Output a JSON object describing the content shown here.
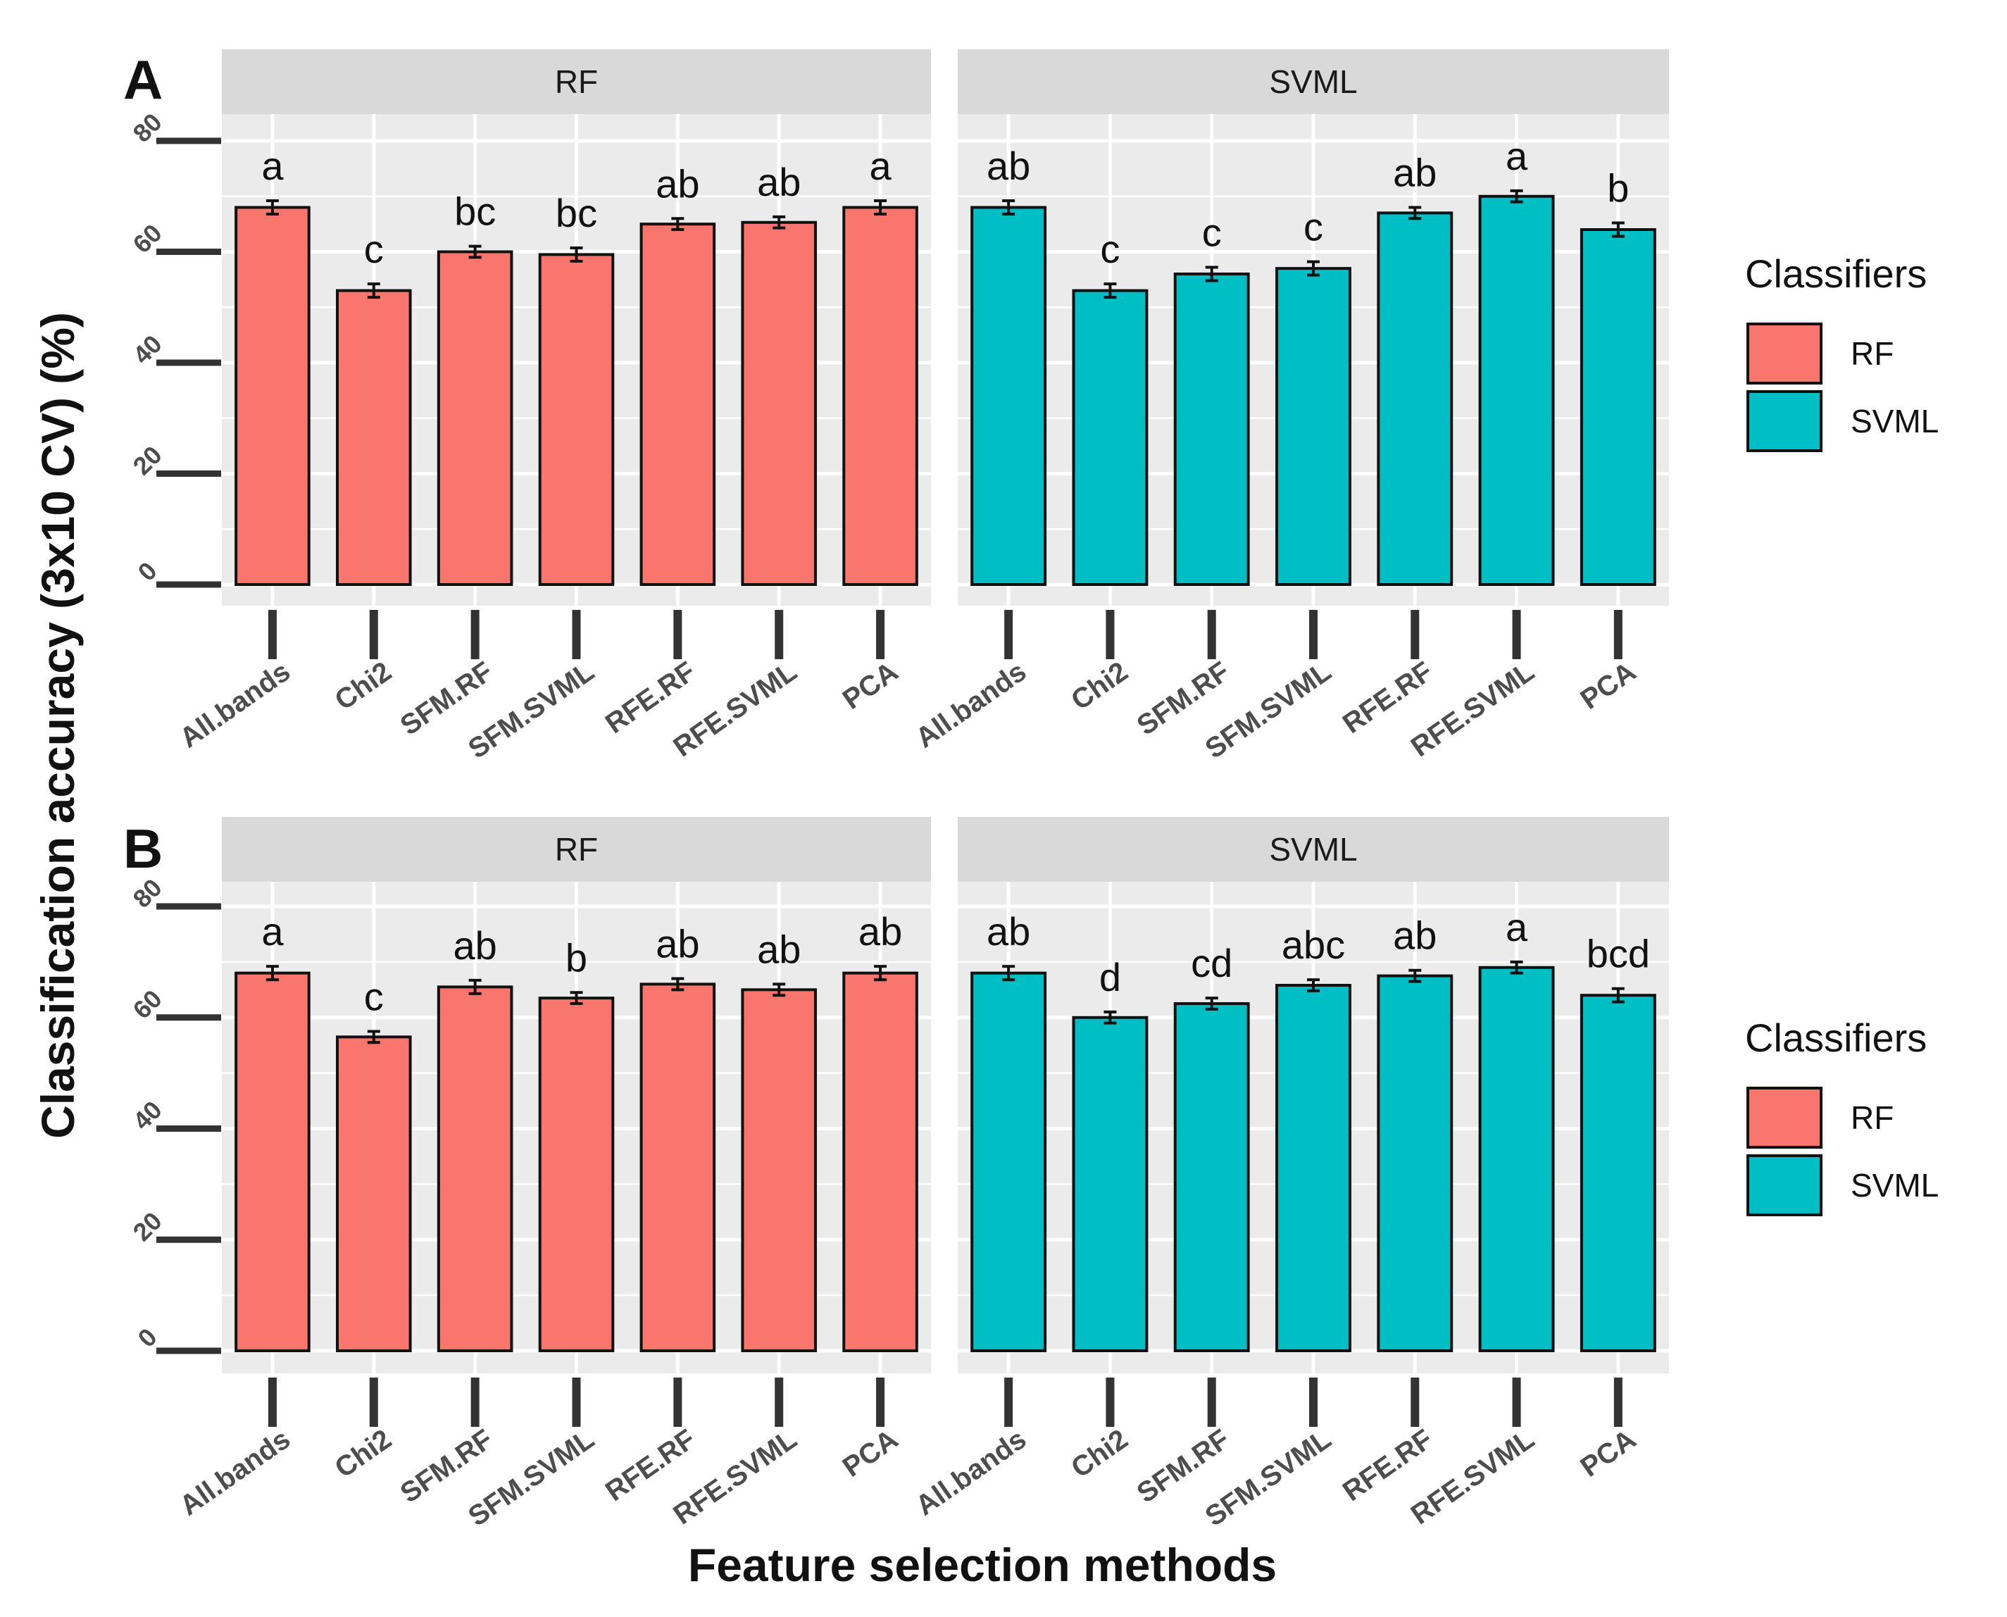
{
  "figure": {
    "ylabel": "Classification accuracy (3x10 CV) (%)",
    "xlabel": "Feature selection methods"
  },
  "legend": {
    "title": "Classifiers",
    "entries": [
      {
        "label": "RF",
        "color": "#F8766D"
      },
      {
        "label": "SVML",
        "color": "#00BFC4"
      }
    ]
  },
  "chart_data": [
    {
      "type": "bar",
      "panel_label": "A",
      "categories": [
        "All.bands",
        "Chi2",
        "SFM.RF",
        "SFM.SVML",
        "RFE.RF",
        "RFE.SVML",
        "PCA"
      ],
      "yticks": [
        0,
        20,
        40,
        60,
        80
      ],
      "ylim": [
        0,
        80
      ],
      "facets": [
        {
          "name": "RF",
          "color": "#F8766D",
          "values": [
            68,
            53,
            60,
            59.5,
            65,
            65.3,
            68
          ],
          "errors": [
            1.2,
            1.2,
            1.0,
            1.2,
            1.0,
            1.0,
            1.2
          ],
          "letters": [
            "a",
            "c",
            "bc",
            "bc",
            "ab",
            "ab",
            "a"
          ]
        },
        {
          "name": "SVML",
          "color": "#00BFC4",
          "values": [
            68,
            53,
            56,
            57,
            67,
            70,
            64
          ],
          "errors": [
            1.2,
            1.2,
            1.2,
            1.2,
            1.0,
            1.0,
            1.2
          ],
          "letters": [
            "ab",
            "c",
            "c",
            "c",
            "ab",
            "a",
            "b"
          ]
        }
      ]
    },
    {
      "type": "bar",
      "panel_label": "B",
      "categories": [
        "All.bands",
        "Chi2",
        "SFM.RF",
        "SFM.SVML",
        "RFE.RF",
        "RFE.SVML",
        "PCA"
      ],
      "yticks": [
        0,
        20,
        40,
        60,
        80
      ],
      "ylim": [
        0,
        80
      ],
      "facets": [
        {
          "name": "RF",
          "color": "#F8766D",
          "values": [
            68,
            56.5,
            65.5,
            63.5,
            66,
            65,
            68
          ],
          "errors": [
            1.2,
            1.0,
            1.2,
            1.0,
            1.0,
            1.0,
            1.2
          ],
          "letters": [
            "a",
            "c",
            "ab",
            "b",
            "ab",
            "ab",
            "ab"
          ]
        },
        {
          "name": "SVML",
          "color": "#00BFC4",
          "values": [
            68,
            60,
            62.5,
            65.8,
            67.5,
            69,
            64
          ],
          "errors": [
            1.2,
            1.0,
            1.0,
            1.0,
            1.0,
            1.0,
            1.2
          ],
          "letters": [
            "ab",
            "d",
            "cd",
            "abc",
            "ab",
            "a",
            "bcd"
          ]
        }
      ]
    }
  ]
}
